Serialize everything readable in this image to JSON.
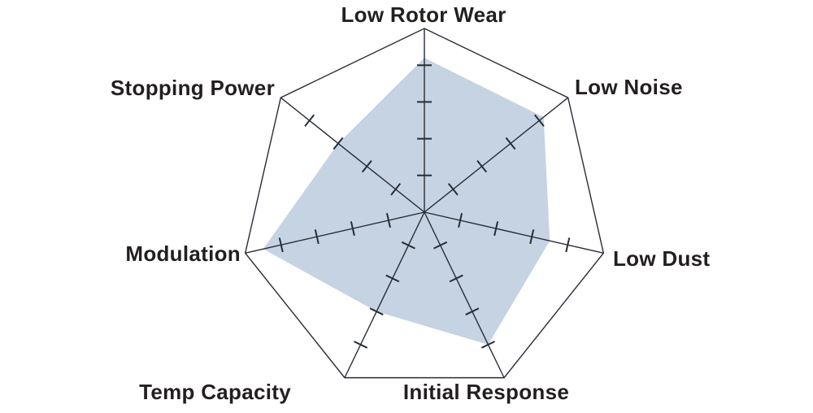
{
  "chart_data": {
    "type": "radar",
    "categories": [
      "Low Rotor Wear",
      "Low Noise",
      "Low Dust",
      "Initial Response",
      "Temp Capacity",
      "Modulation",
      "Stopping Power"
    ],
    "values": [
      4.2,
      4.15,
      3.5,
      4.0,
      3.0,
      4.5,
      3.0
    ],
    "scale": {
      "min": 0,
      "max": 5,
      "tick_values": [
        1,
        2,
        3,
        4
      ]
    },
    "grid": "outer-polygon-with-axis-ticks",
    "legend": "none",
    "title": "",
    "colors": {
      "fill": "#c5d3e2",
      "axis_stroke": "#282c35",
      "label_text": "#231f20",
      "background": "#ffffff"
    }
  }
}
